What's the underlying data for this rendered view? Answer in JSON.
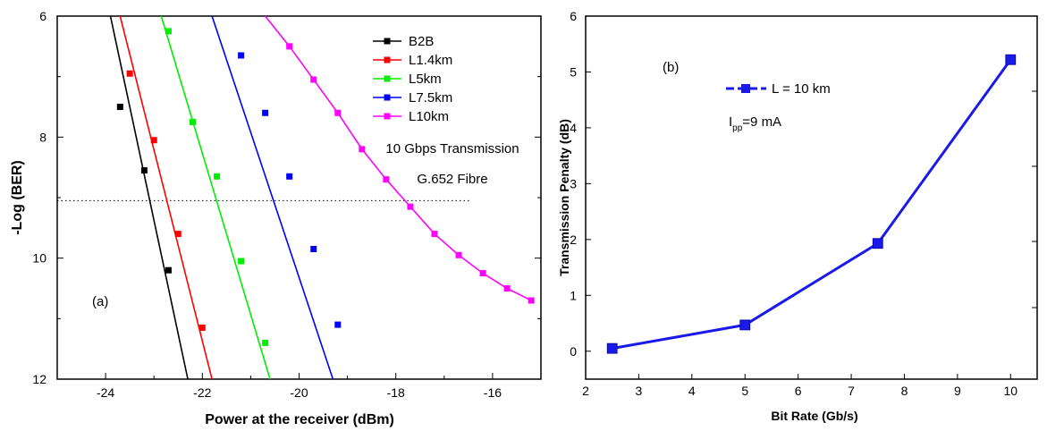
{
  "chart_data": [
    {
      "type": "line",
      "panel_label": "(a)",
      "xlabel": "Power at the receiver (dBm)",
      "ylabel": "-Log (BER)",
      "xlim": [
        -25,
        -15
      ],
      "ylim": [
        6,
        12
      ],
      "y_inverted": true,
      "xticks": [
        "-24",
        "-22",
        "-20",
        "-18",
        "-16"
      ],
      "yticks": [
        "6",
        "8",
        "10",
        "12"
      ],
      "annotations": [
        "10 Gbps Transmission",
        "G.652 Fibre"
      ],
      "reference_line": {
        "y": 9.05,
        "style": "dotted"
      },
      "legend_position": "top-right",
      "series": [
        {
          "name": "B2B",
          "color": "#000000",
          "line": [
            [
              -23.9,
              6
            ],
            [
              -22.3,
              12
            ]
          ],
          "markers": [
            [
              -23.7,
              7.5
            ],
            [
              -23.2,
              8.55
            ],
            [
              -22.7,
              10.2
            ]
          ]
        },
        {
          "name": "L1.4km",
          "color": "#ff0000",
          "line": [
            [
              -23.7,
              6
            ],
            [
              -21.8,
              12
            ]
          ],
          "markers": [
            [
              -23.5,
              6.95
            ],
            [
              -23.0,
              8.05
            ],
            [
              -22.5,
              9.6
            ],
            [
              -22.0,
              11.15
            ]
          ]
        },
        {
          "name": "L5km",
          "color": "#00ee00",
          "line": [
            [
              -22.85,
              6
            ],
            [
              -20.6,
              12
            ]
          ],
          "markers": [
            [
              -22.7,
              6.25
            ],
            [
              -22.2,
              7.75
            ],
            [
              -21.7,
              8.65
            ],
            [
              -21.2,
              10.05
            ],
            [
              -20.7,
              11.4
            ]
          ]
        },
        {
          "name": "L7.5km",
          "color": "#0000ff",
          "line": [
            [
              -21.8,
              6
            ],
            [
              -19.3,
              12
            ]
          ],
          "markers": [
            [
              -21.2,
              6.65
            ],
            [
              -20.7,
              7.6
            ],
            [
              -20.2,
              8.65
            ],
            [
              -19.7,
              9.85
            ],
            [
              -19.2,
              11.1
            ]
          ]
        },
        {
          "name": "L10km",
          "color": "#ff00ff",
          "line": [
            [
              -20.7,
              6
            ],
            [
              -15.2,
              10.7
            ]
          ],
          "markers": [
            [
              -20.2,
              6.5
            ],
            [
              -19.7,
              7.05
            ],
            [
              -19.2,
              7.6
            ],
            [
              -18.7,
              8.2
            ],
            [
              -18.2,
              8.7
            ],
            [
              -17.7,
              9.15
            ],
            [
              -17.2,
              9.6
            ],
            [
              -16.7,
              9.95
            ],
            [
              -16.2,
              10.25
            ],
            [
              -15.7,
              10.5
            ],
            [
              -15.2,
              10.7
            ]
          ]
        }
      ]
    },
    {
      "type": "line",
      "panel_label": "(b)",
      "xlabel": "Bit Rate (Gb/s)",
      "ylabel": "Transmission Penalty (dB)",
      "xlim": [
        2,
        10.5
      ],
      "ylim": [
        -0.5,
        6
      ],
      "xticks": [
        "2",
        "3",
        "4",
        "5",
        "6",
        "7",
        "8",
        "9",
        "10"
      ],
      "yticks": [
        "0",
        "1",
        "2",
        "3",
        "4",
        "5",
        "6"
      ],
      "legend_position": "top-left",
      "annotations": [
        "I",
        "pp",
        "=9 mA"
      ],
      "series": [
        {
          "name": "L = 10 km",
          "color": "#1a1ae6",
          "x": [
            2.5,
            5,
            7.5,
            10
          ],
          "values": [
            0.05,
            0.47,
            1.93,
            5.22
          ]
        }
      ]
    }
  ]
}
